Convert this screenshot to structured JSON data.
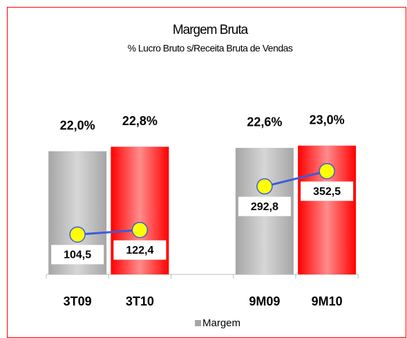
{
  "chart_data": {
    "type": "bar",
    "title": "Margem Bruta",
    "subtitle": "% Lucro Bruto s/Receita Bruta de Vendas",
    "categories": [
      "3T09",
      "3T10",
      null,
      "9M09",
      "9M10"
    ],
    "series": [
      {
        "name": "Margem",
        "colors": [
          "#a6a6a6",
          "#ff0000",
          null,
          "#a6a6a6",
          "#ff0000"
        ],
        "values": [
          22.0,
          22.8,
          null,
          22.6,
          23.0
        ],
        "value_labels": [
          "22,0%",
          "22,8%",
          null,
          "22,6%",
          "23,0%"
        ]
      },
      {
        "type": "line",
        "color": "#3b5bdb",
        "marker_color": "#ffff00",
        "values": [
          104.5,
          122.4,
          null,
          292.8,
          352.5
        ],
        "value_labels": [
          "104,5",
          "122,4",
          null,
          "292,8",
          "352,5"
        ]
      }
    ],
    "legend": "bottom"
  }
}
